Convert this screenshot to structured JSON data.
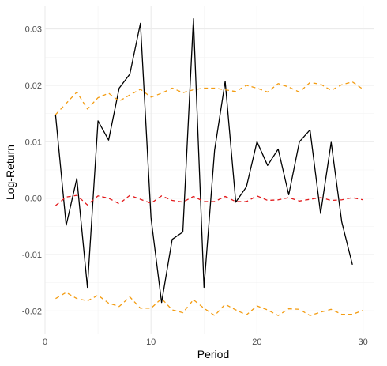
{
  "chart_data": {
    "type": "line",
    "title": "",
    "xlabel": "Period",
    "ylabel": "Log-Return",
    "xlim": [
      0,
      31
    ],
    "ylim": [
      -0.024,
      0.034
    ],
    "x_ticks": [
      0,
      10,
      20,
      30
    ],
    "x_tick_labels": [
      "0",
      "10",
      "20",
      "30"
    ],
    "y_ticks": [
      -0.02,
      -0.01,
      0.0,
      0.01,
      0.02,
      0.03
    ],
    "y_tick_labels": [
      "-0.02",
      "-0.01",
      "0.00",
      "0.01",
      "0.02",
      "0.03"
    ],
    "grid": true,
    "legend": "none",
    "x": [
      1,
      2,
      3,
      4,
      5,
      6,
      7,
      8,
      9,
      10,
      11,
      12,
      13,
      14,
      15,
      16,
      17,
      18,
      19,
      20,
      21,
      22,
      23,
      24,
      25,
      26,
      27,
      28,
      29,
      30
    ],
    "series": [
      {
        "color": "#000000",
        "style": "solid",
        "values": [
          0.0147,
          -0.0048,
          0.0035,
          -0.0158,
          0.0137,
          0.0103,
          0.0195,
          0.022,
          0.031,
          -0.0035,
          -0.0185,
          -0.0073,
          -0.006,
          0.0318,
          -0.0158,
          0.0085,
          0.0207,
          -0.0007,
          0.002,
          0.01,
          0.0058,
          0.0087,
          0.0006,
          0.01,
          0.0121,
          -0.0027,
          0.0099,
          -0.0042,
          -0.0118,
          null
        ]
      },
      {
        "color": "#e31a1c",
        "style": "dashed",
        "values": [
          -0.0013,
          0.0002,
          0.0005,
          -0.0012,
          0.0004,
          0.0,
          -0.001,
          0.0005,
          -0.0002,
          -0.0009,
          0.0004,
          -0.0004,
          -0.0007,
          0.0003,
          -0.0006,
          -0.0006,
          0.0003,
          -0.0006,
          -0.0006,
          0.0004,
          -0.0004,
          -0.0003,
          0.0001,
          -0.0005,
          -0.0002,
          0.0001,
          -0.0004,
          -0.0003,
          0.0001,
          -0.0003
        ]
      },
      {
        "color": "#f39c12",
        "style": "dashed",
        "values": [
          0.0148,
          0.0168,
          0.0188,
          0.0158,
          0.0178,
          0.0186,
          0.0172,
          0.0183,
          0.0193,
          0.0179,
          0.0186,
          0.0195,
          0.0187,
          0.0192,
          0.0195,
          0.0195,
          0.0192,
          0.0189,
          0.02,
          0.0195,
          0.0188,
          0.0203,
          0.0197,
          0.0188,
          0.0205,
          0.0202,
          0.0191,
          0.0201,
          0.0206,
          0.0193
        ]
      },
      {
        "color": "#f39c12",
        "style": "dashed",
        "values": [
          -0.0178,
          -0.0167,
          -0.0178,
          -0.0182,
          -0.0172,
          -0.0186,
          -0.0192,
          -0.0175,
          -0.0195,
          -0.0195,
          -0.0178,
          -0.0198,
          -0.0203,
          -0.018,
          -0.0195,
          -0.0208,
          -0.0188,
          -0.0198,
          -0.0207,
          -0.0191,
          -0.0198,
          -0.0208,
          -0.0196,
          -0.0197,
          -0.0208,
          -0.0202,
          -0.0197,
          -0.0206,
          -0.0206,
          -0.0199
        ]
      }
    ]
  }
}
